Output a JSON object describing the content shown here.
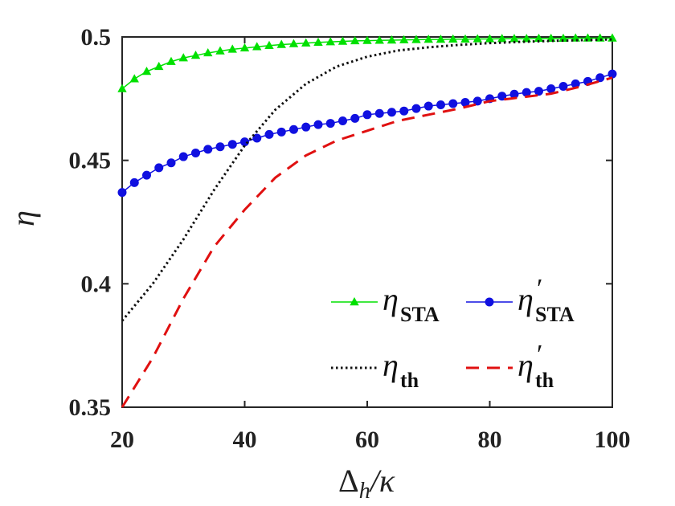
{
  "chart_data": {
    "type": "line",
    "xlabel": "Δh/κ",
    "xlabel_main": "Δ",
    "xlabel_sub": "h",
    "xlabel_rest": "/κ",
    "ylabel": "η",
    "xlim": [
      20,
      100
    ],
    "ylim": [
      0.35,
      0.5
    ],
    "x_ticks": [
      "20",
      "40",
      "60",
      "80",
      "100"
    ],
    "y_ticks": [
      "0.35",
      "0.4",
      "0.45",
      "0.5"
    ],
    "series": [
      {
        "name": "η_STA",
        "symbol": "η",
        "subscript": "STA",
        "prime": "",
        "style": "solid-triangle",
        "color": "#00e000",
        "x": [
          20,
          22,
          24,
          26,
          28,
          30,
          32,
          34,
          36,
          38,
          40,
          42,
          44,
          46,
          48,
          50,
          52,
          54,
          56,
          58,
          60,
          62,
          64,
          66,
          68,
          70,
          72,
          74,
          76,
          78,
          80,
          82,
          84,
          86,
          88,
          90,
          92,
          94,
          96,
          98,
          100
        ],
        "values": [
          0.479,
          0.483,
          0.486,
          0.488,
          0.49,
          0.4915,
          0.4925,
          0.4935,
          0.4943,
          0.495,
          0.4955,
          0.496,
          0.4965,
          0.4969,
          0.4972,
          0.4975,
          0.4978,
          0.498,
          0.4982,
          0.4984,
          0.4985,
          0.4986,
          0.4987,
          0.4988,
          0.4989,
          0.499,
          0.499,
          0.4991,
          0.4991,
          0.4992,
          0.4992,
          0.4993,
          0.4993,
          0.4993,
          0.4994,
          0.4994,
          0.4994,
          0.4995,
          0.4995,
          0.4995,
          0.4995
        ]
      },
      {
        "name": "η′_STA",
        "symbol": "η",
        "subscript": "STA",
        "prime": "′",
        "style": "solid-circle",
        "color": "#1010e0",
        "x": [
          20,
          22,
          24,
          26,
          28,
          30,
          32,
          34,
          36,
          38,
          40,
          42,
          44,
          46,
          48,
          50,
          52,
          54,
          56,
          58,
          60,
          62,
          64,
          66,
          68,
          70,
          72,
          74,
          76,
          78,
          80,
          82,
          84,
          86,
          88,
          90,
          92,
          94,
          96,
          98,
          100
        ],
        "values": [
          0.437,
          0.441,
          0.444,
          0.447,
          0.449,
          0.4515,
          0.453,
          0.4545,
          0.4555,
          0.4565,
          0.4575,
          0.459,
          0.4605,
          0.4615,
          0.4625,
          0.4635,
          0.4645,
          0.465,
          0.466,
          0.467,
          0.4685,
          0.469,
          0.4695,
          0.47,
          0.471,
          0.472,
          0.4725,
          0.473,
          0.4735,
          0.474,
          0.475,
          0.476,
          0.4768,
          0.4775,
          0.478,
          0.479,
          0.48,
          0.481,
          0.482,
          0.4835,
          0.485
        ]
      },
      {
        "name": "η_th",
        "symbol": "η",
        "subscript": "th",
        "prime": "",
        "style": "dotted",
        "color": "#111111",
        "x": [
          20,
          25,
          30,
          35,
          40,
          45,
          50,
          55,
          60,
          65,
          70,
          75,
          80,
          85,
          90,
          95,
          100
        ],
        "values": [
          0.385,
          0.4,
          0.418,
          0.438,
          0.456,
          0.4705,
          0.481,
          0.488,
          0.492,
          0.4945,
          0.4958,
          0.4968,
          0.4975,
          0.498,
          0.4984,
          0.4987,
          0.499
        ]
      },
      {
        "name": "η′_th",
        "symbol": "η",
        "subscript": "th",
        "prime": "′",
        "style": "dashed",
        "color": "#e01010",
        "x": [
          20,
          25,
          30,
          35,
          40,
          45,
          50,
          55,
          60,
          65,
          70,
          75,
          80,
          85,
          90,
          95,
          100
        ],
        "values": [
          0.35,
          0.37,
          0.394,
          0.415,
          0.43,
          0.443,
          0.452,
          0.458,
          0.462,
          0.466,
          0.4685,
          0.471,
          0.474,
          0.4755,
          0.477,
          0.48,
          0.4835
        ]
      }
    ],
    "legend": {
      "location": "bottom-right",
      "columns": 2
    }
  }
}
